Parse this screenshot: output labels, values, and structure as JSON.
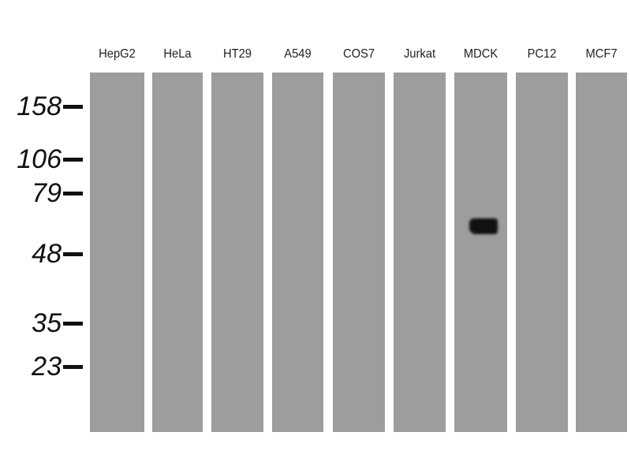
{
  "lanes": [
    "HepG2",
    "HeLa",
    "HT29",
    "A549",
    "COS7",
    "Jurkat",
    "MDCK",
    "PC12",
    "MCF7"
  ],
  "markers": [
    "158",
    "106",
    "79",
    "48",
    "35",
    "23"
  ],
  "band": {
    "lane": "MDCK",
    "marker_between": [
      "79",
      "48"
    ]
  }
}
